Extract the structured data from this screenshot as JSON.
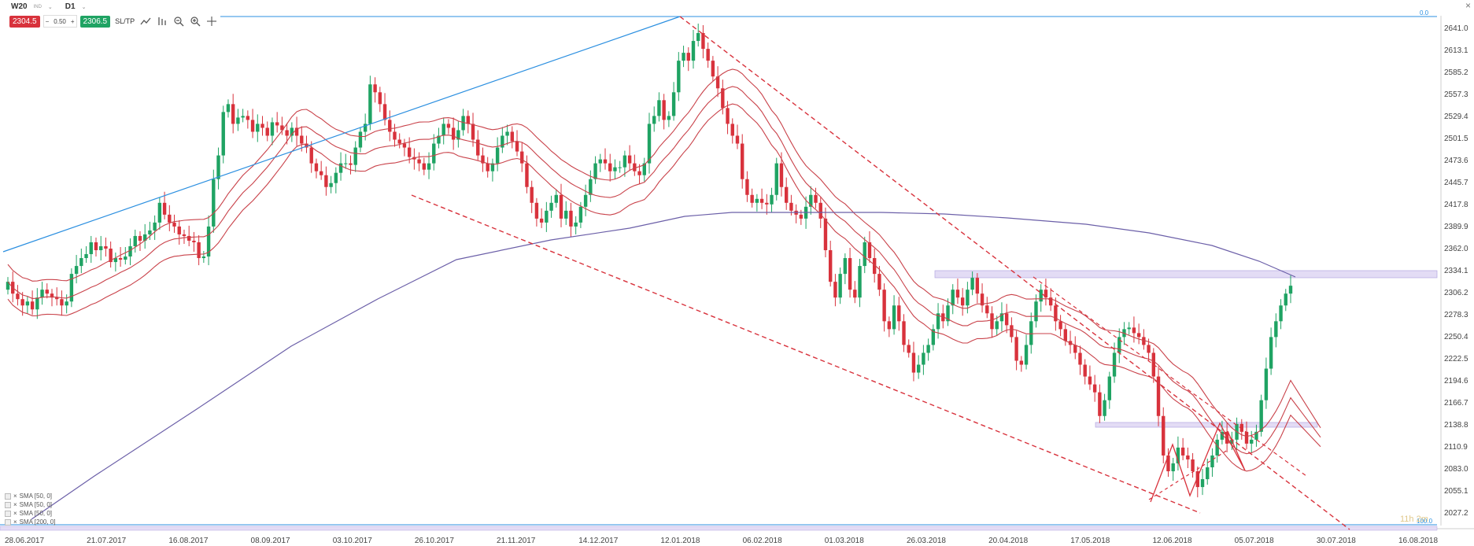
{
  "header": {
    "symbol": "W20",
    "symbol_tag": "IND",
    "timeframe": "D1",
    "sell_price": "2304.5",
    "lot_size": "0.50",
    "buy_price": "2306.5",
    "sltp_label": "SL/TP"
  },
  "legend": {
    "items": [
      "SMA [50, 0]",
      "SMA [50, 0]",
      "SMA [50, 0]",
      "SMA [200, 0]"
    ]
  },
  "watermark": "11h 2m",
  "colors": {
    "bull": "#1fa363",
    "bear": "#d8323c",
    "envelope": "#c9424a",
    "sma200": "#6b5fa8",
    "trend_up": "#2b8fe0",
    "zone_fill": "#e3dcf5",
    "zone_stroke": "#b3a6e0"
  },
  "chart_data": {
    "type": "candlestick",
    "y_ticks": [
      "2641.0",
      "2613.1",
      "2585.2",
      "2557.3",
      "2529.4",
      "2501.5",
      "2473.6",
      "2445.7",
      "2417.8",
      "2389.9",
      "2362.0",
      "2334.1",
      "2306.2",
      "2278.3",
      "2250.4",
      "2222.5",
      "2194.6",
      "2166.7",
      "2138.8",
      "2110.9",
      "2083.0",
      "2055.1",
      "2027.2"
    ],
    "ylim": [
      2027.2,
      2641.0
    ],
    "x_ticks": [
      "28.06.2017",
      "21.07.2017",
      "16.08.2017",
      "08.09.2017",
      "03.10.2017",
      "26.10.2017",
      "21.11.2017",
      "14.12.2017",
      "12.01.2018",
      "06.02.2018",
      "01.03.2018",
      "26.03.2018",
      "20.04.2018",
      "17.05.2018",
      "12.06.2018",
      "05.07.2018",
      "30.07.2018",
      "16.08.2018"
    ],
    "fib_label_top": "0.0",
    "fib_label_bottom": "100.0",
    "fib_levels": [
      2661,
      2042
    ],
    "closes": [
      2320,
      2305,
      2298,
      2290,
      2295,
      2285,
      2300,
      2310,
      2305,
      2300,
      2298,
      2290,
      2295,
      2330,
      2340,
      2350,
      2355,
      2370,
      2360,
      2365,
      2362,
      2345,
      2350,
      2348,
      2352,
      2365,
      2378,
      2372,
      2380,
      2385,
      2395,
      2420,
      2405,
      2395,
      2390,
      2380,
      2378,
      2372,
      2370,
      2350,
      2352,
      2390,
      2450,
      2480,
      2535,
      2545,
      2520,
      2528,
      2530,
      2525,
      2510,
      2520,
      2515,
      2505,
      2522,
      2518,
      2512,
      2505,
      2515,
      2505,
      2495,
      2490,
      2470,
      2460,
      2455,
      2440,
      2445,
      2458,
      2470,
      2470,
      2468,
      2490,
      2510,
      2520,
      2570,
      2560,
      2545,
      2525,
      2510,
      2500,
      2495,
      2490,
      2478,
      2475,
      2470,
      2462,
      2470,
      2495,
      2505,
      2520,
      2515,
      2500,
      2512,
      2530,
      2520,
      2500,
      2480,
      2470,
      2460,
      2470,
      2490,
      2505,
      2510,
      2498,
      2485,
      2470,
      2440,
      2420,
      2400,
      2395,
      2410,
      2420,
      2430,
      2400,
      2410,
      2390,
      2395,
      2415,
      2430,
      2450,
      2470,
      2475,
      2470,
      2460,
      2465,
      2465,
      2480,
      2470,
      2460,
      2455,
      2470,
      2520,
      2530,
      2550,
      2525,
      2530,
      2560,
      2600,
      2610,
      2600,
      2625,
      2635,
      2615,
      2600,
      2580,
      2565,
      2540,
      2520,
      2505,
      2495,
      2450,
      2430,
      2420,
      2425,
      2420,
      2418,
      2430,
      2470,
      2440,
      2420,
      2410,
      2405,
      2400,
      2415,
      2430,
      2420,
      2400,
      2360,
      2320,
      2300,
      2330,
      2350,
      2310,
      2300,
      2340,
      2370,
      2350,
      2330,
      2310,
      2270,
      2260,
      2290,
      2270,
      2240,
      2230,
      2205,
      2215,
      2230,
      2240,
      2260,
      2280,
      2270,
      2290,
      2310,
      2300,
      2290,
      2310,
      2325,
      2305,
      2290,
      2280,
      2260,
      2270,
      2280,
      2265,
      2250,
      2220,
      2215,
      2240,
      2270,
      2295,
      2310,
      2300,
      2290,
      2270,
      2260,
      2245,
      2240,
      2230,
      2215,
      2200,
      2190,
      2180,
      2150,
      2170,
      2200,
      2230,
      2250,
      2260,
      2262,
      2255,
      2250,
      2240,
      2230,
      2200,
      2150,
      2100,
      2080,
      2090,
      2110,
      2100,
      2095,
      2080,
      2060,
      2070,
      2085,
      2100,
      2120,
      2130,
      2115,
      2120,
      2140,
      2130,
      2115,
      2120,
      2130,
      2170,
      2210,
      2250,
      2270,
      2290,
      2305,
      2315
    ]
  }
}
